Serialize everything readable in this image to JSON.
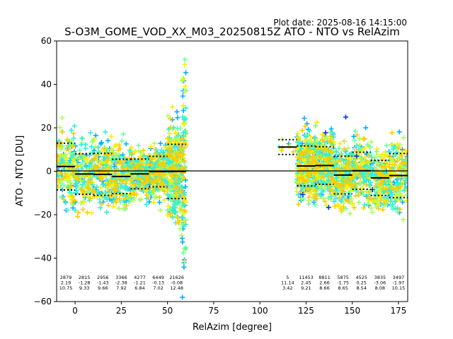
{
  "plot_date": "Plot date: 2025-08-16 14:15:00",
  "chart_data": {
    "type": "scatter",
    "title": "S-O3M_GOME_VOD_XX_M03_20250815Z ATO - NTO vs RelAzim",
    "xlabel": "RelAzim [degree]",
    "ylabel": "ATO - NTO [DU]",
    "xlim": [
      -10,
      180
    ],
    "ylim": [
      -60,
      60
    ],
    "xticks": [
      0,
      25,
      50,
      75,
      100,
      125,
      150,
      175
    ],
    "yticks": [
      -60,
      -40,
      -20,
      0,
      20,
      40,
      60
    ],
    "reference_line_y": 0,
    "bins": [
      {
        "x0": -10,
        "x1": 0,
        "count": "2879",
        "mean": "2.19",
        "std": "10.75"
      },
      {
        "x0": 0,
        "x1": 10,
        "count": "2815",
        "mean": "-1.28",
        "std": "9.33"
      },
      {
        "x0": 10,
        "x1": 20,
        "count": "2956",
        "mean": "-1.43",
        "std": "9.66"
      },
      {
        "x0": 20,
        "x1": 30,
        "count": "3366",
        "mean": "-2.38",
        "std": "7.92"
      },
      {
        "x0": 30,
        "x1": 40,
        "count": "4277",
        "mean": "-1.21",
        "std": "6.84"
      },
      {
        "x0": 40,
        "x1": 50,
        "count": "6449",
        "mean": "-0.13",
        "std": "7.02"
      },
      {
        "x0": 50,
        "x1": 60,
        "count": "21626",
        "mean": "-0.08",
        "std": "12.48"
      },
      {
        "x0": 110,
        "x1": 120,
        "count": "5",
        "mean": "11.14",
        "std": "3.42"
      },
      {
        "x0": 120,
        "x1": 130,
        "count": "11453",
        "mean": "2.45",
        "std": "9.21"
      },
      {
        "x0": 130,
        "x1": 140,
        "count": "8811",
        "mean": "2.66",
        "std": "8.66"
      },
      {
        "x0": 140,
        "x1": 150,
        "count": "5875",
        "mean": "-1.75",
        "std": "8.65"
      },
      {
        "x0": 150,
        "x1": 160,
        "count": "4525",
        "mean": "0.25",
        "std": "8.54"
      },
      {
        "x0": 160,
        "x1": 170,
        "count": "3835",
        "mean": "-3.06",
        "std": "8.08"
      },
      {
        "x0": 170,
        "x1": 180,
        "count": "3497",
        "mean": "-1.97",
        "std": "10.15"
      }
    ],
    "point_colors": [
      "#00b0ff",
      "#66ffaa",
      "#aaff55",
      "#ffee00",
      "#33eedd",
      "#ffcc00",
      "#0033ff"
    ],
    "grid": false,
    "legend": "none"
  }
}
